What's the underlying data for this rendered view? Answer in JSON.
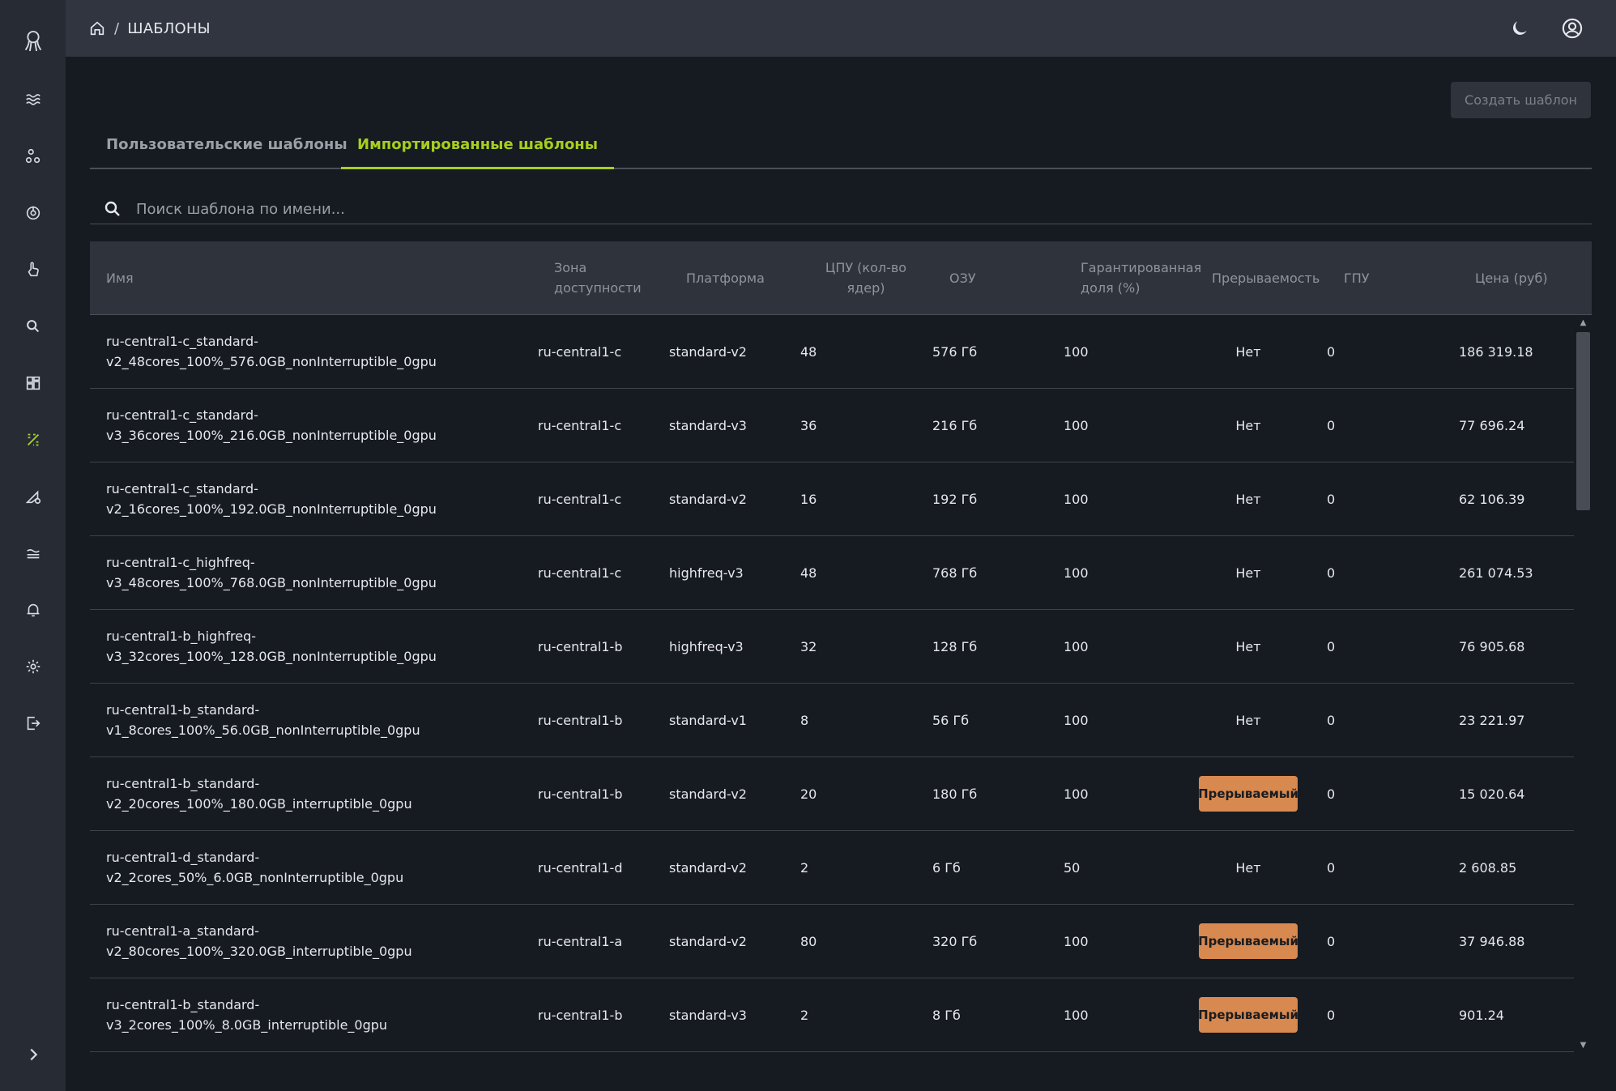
{
  "header": {
    "breadcrumb_separator": "/",
    "breadcrumb_current": "ШАБЛОНЫ"
  },
  "actions": {
    "create_label": "Создать шаблон"
  },
  "tabs": [
    {
      "label": "Пользовательские шаблоны",
      "active": false
    },
    {
      "label": "Импортированные шаблоны",
      "active": true
    }
  ],
  "search": {
    "placeholder": "Поиск шаблона по имени..."
  },
  "sidebar": {
    "icons": [
      "logo-icon",
      "waves-icon",
      "nodes-icon",
      "power-icon",
      "pointer-icon",
      "search-icon",
      "dashboard-icon",
      "templates-icon",
      "deploy-icon",
      "layers-icon",
      "bell-icon",
      "gear-icon",
      "logout-icon"
    ],
    "expand_icon": "chevron-right-icon",
    "active": "templates-icon",
    "accent": "#a6cf1e"
  },
  "table": {
    "columns": [
      "Имя",
      "Зона доступности",
      "Платформа",
      "ЦПУ (кол-во ядер)",
      "ОЗУ",
      "Гарантированная доля (%)",
      "Прерываемость",
      "ГПУ",
      "Цена (руб)"
    ],
    "rows": [
      {
        "name1": "ru-central1-c_standard-",
        "name2": "v2_48cores_100%_576.0GB_nonInterruptible_0gpu",
        "zone": "ru-central1-c",
        "platform": "standard-v2",
        "cpu": "48",
        "ram": "576 Гб",
        "share": "100",
        "interrupt": "Нет",
        "badge": false,
        "gpu": "0",
        "price": "186 319.18"
      },
      {
        "name1": "ru-central1-c_standard-",
        "name2": "v3_36cores_100%_216.0GB_nonInterruptible_0gpu",
        "zone": "ru-central1-c",
        "platform": "standard-v3",
        "cpu": "36",
        "ram": "216 Гб",
        "share": "100",
        "interrupt": "Нет",
        "badge": false,
        "gpu": "0",
        "price": "77 696.24"
      },
      {
        "name1": "ru-central1-c_standard-",
        "name2": "v2_16cores_100%_192.0GB_nonInterruptible_0gpu",
        "zone": "ru-central1-c",
        "platform": "standard-v2",
        "cpu": "16",
        "ram": "192 Гб",
        "share": "100",
        "interrupt": "Нет",
        "badge": false,
        "gpu": "0",
        "price": "62 106.39"
      },
      {
        "name1": "ru-central1-c_highfreq-",
        "name2": "v3_48cores_100%_768.0GB_nonInterruptible_0gpu",
        "zone": "ru-central1-c",
        "platform": "highfreq-v3",
        "cpu": "48",
        "ram": "768 Гб",
        "share": "100",
        "interrupt": "Нет",
        "badge": false,
        "gpu": "0",
        "price": "261 074.53"
      },
      {
        "name1": "ru-central1-b_highfreq-",
        "name2": "v3_32cores_100%_128.0GB_nonInterruptible_0gpu",
        "zone": "ru-central1-b",
        "platform": "highfreq-v3",
        "cpu": "32",
        "ram": "128 Гб",
        "share": "100",
        "interrupt": "Нет",
        "badge": false,
        "gpu": "0",
        "price": "76 905.68"
      },
      {
        "name1": "ru-central1-b_standard-",
        "name2": "v1_8cores_100%_56.0GB_nonInterruptible_0gpu",
        "zone": "ru-central1-b",
        "platform": "standard-v1",
        "cpu": "8",
        "ram": "56 Гб",
        "share": "100",
        "interrupt": "Нет",
        "badge": false,
        "gpu": "0",
        "price": "23 221.97"
      },
      {
        "name1": "ru-central1-b_standard-",
        "name2": "v2_20cores_100%_180.0GB_interruptible_0gpu",
        "zone": "ru-central1-b",
        "platform": "standard-v2",
        "cpu": "20",
        "ram": "180 Гб",
        "share": "100",
        "interrupt": "Прерываемый",
        "badge": true,
        "gpu": "0",
        "price": "15 020.64"
      },
      {
        "name1": "ru-central1-d_standard-",
        "name2": "v2_2cores_50%_6.0GB_nonInterruptible_0gpu",
        "zone": "ru-central1-d",
        "platform": "standard-v2",
        "cpu": "2",
        "ram": "6 Гб",
        "share": "50",
        "interrupt": "Нет",
        "badge": false,
        "gpu": "0",
        "price": "2 608.85"
      },
      {
        "name1": "ru-central1-a_standard-",
        "name2": "v2_80cores_100%_320.0GB_interruptible_0gpu",
        "zone": "ru-central1-a",
        "platform": "standard-v2",
        "cpu": "80",
        "ram": "320 Гб",
        "share": "100",
        "interrupt": "Прерываемый",
        "badge": true,
        "gpu": "0",
        "price": "37 946.88"
      },
      {
        "name1": "ru-central1-b_standard-",
        "name2": "v3_2cores_100%_8.0GB_interruptible_0gpu",
        "zone": "ru-central1-b",
        "platform": "standard-v3",
        "cpu": "2",
        "ram": "8 Гб",
        "share": "100",
        "interrupt": "Прерываемый",
        "badge": true,
        "gpu": "0",
        "price": "901.24"
      }
    ]
  }
}
